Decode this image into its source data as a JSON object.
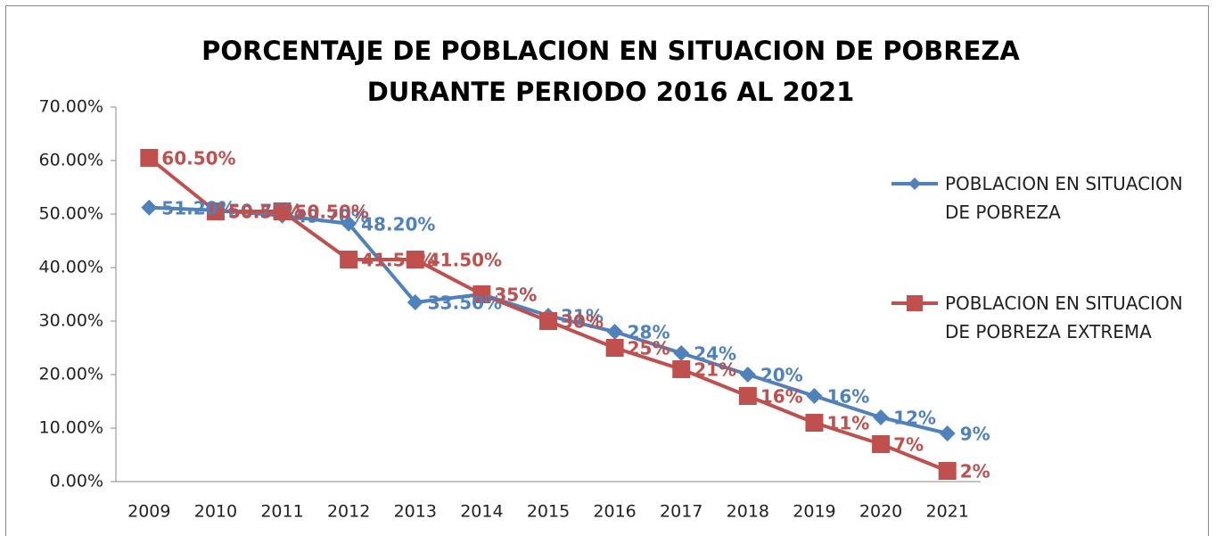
{
  "chart_data": {
    "type": "line",
    "title": "PORCENTAJE DE POBLACION EN SITUACION DE POBREZA DURANTE PERIODO 2016 AL 2021",
    "categories": [
      "2009",
      "2010",
      "2011",
      "2012",
      "2013",
      "2014",
      "2015",
      "2016",
      "2017",
      "2018",
      "2019",
      "2020",
      "2021"
    ],
    "series": [
      {
        "name": "POBLACION EN SITUACION DE POBREZA",
        "color": "#4f81bd",
        "marker": "diamond",
        "values": [
          51.2,
          50.7,
          49.7,
          48.2,
          33.5,
          35,
          31,
          28,
          24,
          20,
          16,
          12,
          9
        ],
        "value_labels": [
          "51.20%",
          "50.70%",
          "49.70%",
          "48.20%",
          "33.50%",
          "35%",
          "31%",
          "28%",
          "24%",
          "20%",
          "16%",
          "12%",
          "9%"
        ]
      },
      {
        "name": "POBLACION EN SITUACION DE POBREZA EXTREMA",
        "color": "#c0504d",
        "marker": "square",
        "values": [
          60.5,
          50.5,
          50.5,
          41.5,
          41.5,
          35,
          30,
          25,
          21,
          16,
          11,
          7,
          2
        ],
        "value_labels": [
          "60.50%",
          "50.50%",
          "50.50%",
          "41.50%",
          "41.50%",
          "35%",
          "30%",
          "25%",
          "21%",
          "16%",
          "11%",
          "7%",
          "2%"
        ]
      }
    ],
    "ylim": [
      0,
      70
    ],
    "yticks": [
      {
        "value": 0,
        "label": "0.00%"
      },
      {
        "value": 10,
        "label": "10.00%"
      },
      {
        "value": 20,
        "label": "20.00%"
      },
      {
        "value": 30,
        "label": "30.00%"
      },
      {
        "value": 40,
        "label": "40.00%"
      },
      {
        "value": 50,
        "label": "50.00%"
      },
      {
        "value": 60,
        "label": "60.00%"
      },
      {
        "value": 70,
        "label": "70.00%"
      }
    ],
    "grid": false,
    "legend": "right"
  }
}
